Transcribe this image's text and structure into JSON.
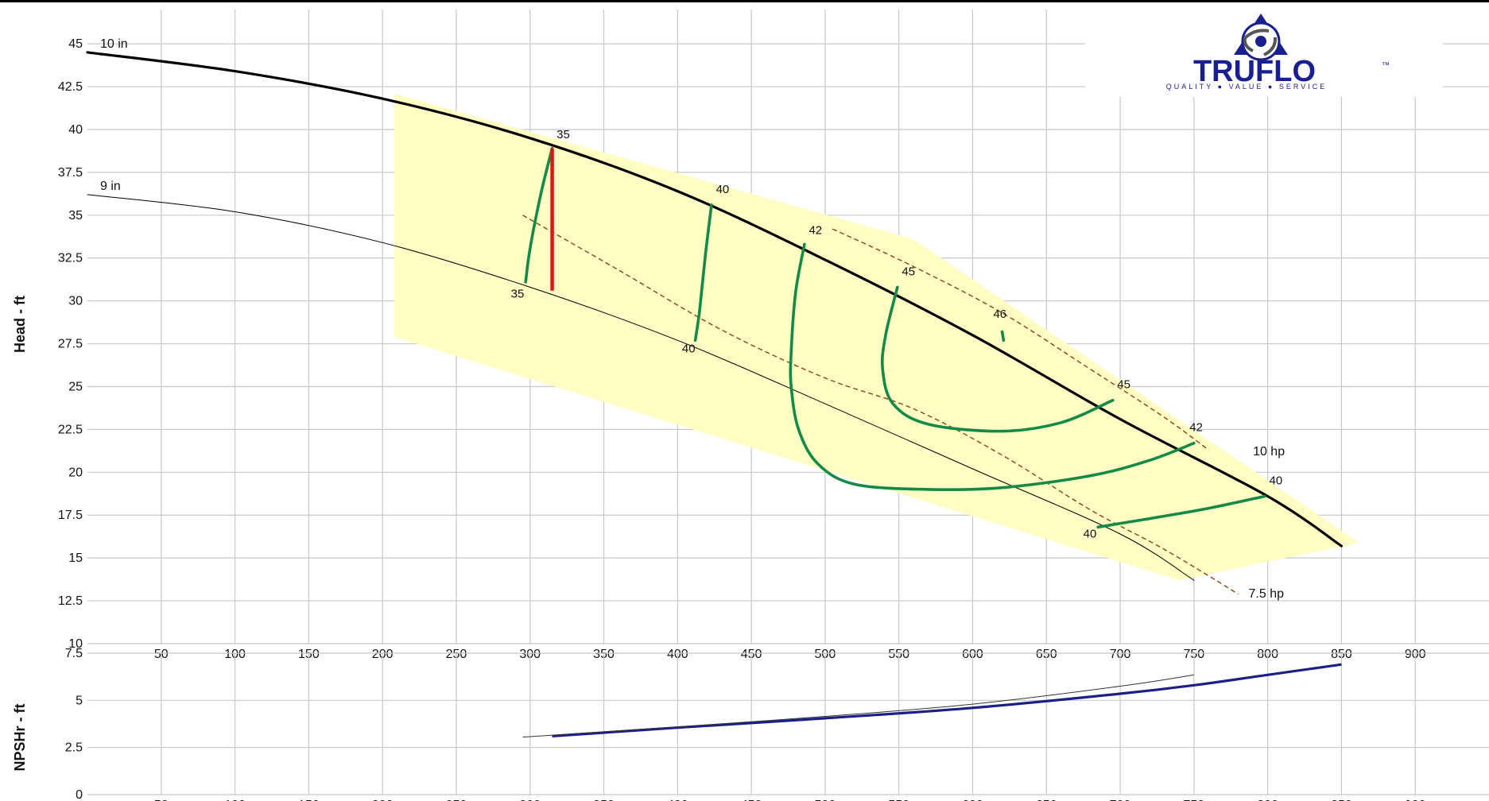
{
  "logo": {
    "brand": "TRUFLO",
    "tm": "™",
    "tagline": "QUALITY ● VALUE ● SERVICE"
  },
  "colors": {
    "frame": "#000000",
    "grid": "#c8c8c8",
    "envelope_fill": "#fffcc4",
    "impeller_curve": "#000000",
    "efficiency_curve": "#138a45",
    "power_curve": "#8b4513",
    "duty_marker": "#e3140f",
    "npsh_curve": "#1c1f8a",
    "logo_blue": "#1a1f8f"
  },
  "chart_data": [
    {
      "type": "line",
      "title": "",
      "xlabel": "",
      "ylabel": "Head - ft",
      "xlim": [
        0,
        950
      ],
      "ylim": [
        10,
        47
      ],
      "x_ticks": [
        "50",
        "100",
        "150",
        "200",
        "250",
        "300",
        "350",
        "400",
        "450",
        "500",
        "550",
        "600",
        "650",
        "700",
        "750",
        "800",
        "850",
        "900"
      ],
      "y_ticks": [
        "10",
        "12.5",
        "15",
        "17.5",
        "20",
        "22.5",
        "25",
        "27.5",
        "30",
        "32.5",
        "35",
        "37.5",
        "40",
        "42.5",
        "45"
      ],
      "grid": true,
      "operating_envelope": [
        [
          208,
          42.1
        ],
        [
          560,
          33.6
        ],
        [
          862,
          15.9
        ],
        [
          740,
          13.7
        ],
        [
          208,
          27.9
        ]
      ],
      "impeller_curves": [
        {
          "label": "10 in",
          "points": [
            [
              0,
              44.5
            ],
            [
              100,
              43.4
            ],
            [
              200,
              41.8
            ],
            [
              300,
              39.5
            ],
            [
              400,
              36.4
            ],
            [
              500,
              32.4
            ],
            [
              600,
              28.0
            ],
            [
              700,
              23.1
            ],
            [
              800,
              18.6
            ],
            [
              850,
              15.7
            ]
          ]
        },
        {
          "label": "9 in",
          "points": [
            [
              0,
              36.2
            ],
            [
              100,
              35.2
            ],
            [
              200,
              33.4
            ],
            [
              300,
              30.8
            ],
            [
              400,
              27.7
            ],
            [
              500,
              24.0
            ],
            [
              600,
              20.2
            ],
            [
              700,
              16.4
            ],
            [
              750,
              13.7
            ]
          ]
        }
      ],
      "efficiency_curves": [
        {
          "label": "35",
          "points": [
            [
              315,
              38.9
            ],
            [
              308,
              36.5
            ],
            [
              302,
              34.0
            ],
            [
              299,
              32.5
            ],
            [
              297,
              31.1
            ]
          ]
        },
        {
          "label": "40",
          "points": [
            [
              423,
              35.6
            ],
            [
              419,
              32.8
            ],
            [
              415,
              29.5
            ],
            [
              412,
              27.7
            ]
          ]
        },
        {
          "label": "42",
          "points": [
            [
              486,
              33.3
            ],
            [
              480,
              30.5
            ],
            [
              477,
              27.0
            ],
            [
              477,
              25.0
            ],
            [
              482,
              22.5
            ],
            [
              495,
              20.5
            ],
            [
              520,
              19.3
            ],
            [
              570,
              19.0
            ],
            [
              620,
              19.1
            ],
            [
              680,
              19.8
            ],
            [
              720,
              20.7
            ],
            [
              750,
              21.7
            ]
          ]
        },
        {
          "label": "45",
          "points": [
            [
              549,
              30.8
            ],
            [
              541,
              28.0
            ],
            [
              539,
              26.0
            ],
            [
              546,
              24.0
            ],
            [
              570,
              22.8
            ],
            [
              620,
              22.4
            ],
            [
              660,
              22.9
            ],
            [
              695,
              24.2
            ]
          ]
        },
        {
          "label": "46",
          "points": [
            [
              620,
              28.2
            ],
            [
              621,
              27.7
            ]
          ]
        },
        {
          "label": "40",
          "points": [
            [
              685,
              16.8
            ],
            [
              720,
              17.3
            ],
            [
              760,
              17.9
            ],
            [
              798,
              18.6
            ]
          ]
        }
      ],
      "efficiency_labels": [
        {
          "text": "35",
          "x": 318,
          "y": 39.5
        },
        {
          "text": "35",
          "x": 287,
          "y": 30.2
        },
        {
          "text": "40",
          "x": 426,
          "y": 36.3
        },
        {
          "text": "40",
          "x": 403,
          "y": 27.0
        },
        {
          "text": "42",
          "x": 489,
          "y": 33.9
        },
        {
          "text": "45",
          "x": 552,
          "y": 31.5
        },
        {
          "text": "46",
          "x": 614,
          "y": 29.0
        },
        {
          "text": "45",
          "x": 698,
          "y": 24.9
        },
        {
          "text": "42",
          "x": 747,
          "y": 22.4
        },
        {
          "text": "40",
          "x": 801,
          "y": 19.3
        },
        {
          "text": "40",
          "x": 675,
          "y": 16.2
        }
      ],
      "power_curves": [
        {
          "label": "10 hp",
          "points": [
            [
              505,
              34.2
            ],
            [
              560,
              32.0
            ],
            [
              620,
              29.3
            ],
            [
              680,
              26.0
            ],
            [
              730,
              23.2
            ],
            [
              760,
              21.3
            ]
          ]
        },
        {
          "label": "7.5 hp",
          "points": [
            [
              295,
              35.0
            ],
            [
              360,
              31.8
            ],
            [
              430,
              28.3
            ],
            [
              500,
              25.5
            ],
            [
              560,
              23.7
            ],
            [
              620,
              21.0
            ],
            [
              680,
              17.8
            ],
            [
              730,
              15.5
            ],
            [
              780,
              12.9
            ]
          ]
        }
      ],
      "power_labels": [
        {
          "text": "10 hp",
          "x": 790,
          "y": 21.0
        },
        {
          "text": "7.5 hp",
          "x": 787,
          "y": 12.7
        }
      ],
      "duty_point": {
        "flow": 315,
        "head_top": 38.9,
        "head_bottom": 30.6
      }
    },
    {
      "type": "line",
      "title": "",
      "xlabel": "",
      "ylabel": "NPSHr - ft",
      "xlim": [
        0,
        950
      ],
      "ylim": [
        0,
        7.5
      ],
      "x_ticks": [
        "50",
        "100",
        "150",
        "200",
        "250",
        "300",
        "350",
        "400",
        "450",
        "500",
        "550",
        "600",
        "650",
        "700",
        "750",
        "800",
        "850",
        "900"
      ],
      "y_ticks": [
        "0",
        "2.5",
        "5",
        "7.5"
      ],
      "grid": true,
      "series": [
        {
          "name": "10 in",
          "points": [
            [
              315,
              3.1
            ],
            [
              400,
              3.55
            ],
            [
              500,
              4.05
            ],
            [
              600,
              4.6
            ],
            [
              700,
              5.35
            ],
            [
              750,
              5.8
            ],
            [
              800,
              6.35
            ],
            [
              850,
              6.9
            ]
          ]
        },
        {
          "name": "9 in",
          "points": [
            [
              295,
              3.05
            ],
            [
              400,
              3.6
            ],
            [
              500,
              4.15
            ],
            [
              600,
              4.8
            ],
            [
              700,
              5.75
            ],
            [
              750,
              6.35
            ]
          ]
        }
      ]
    }
  ]
}
